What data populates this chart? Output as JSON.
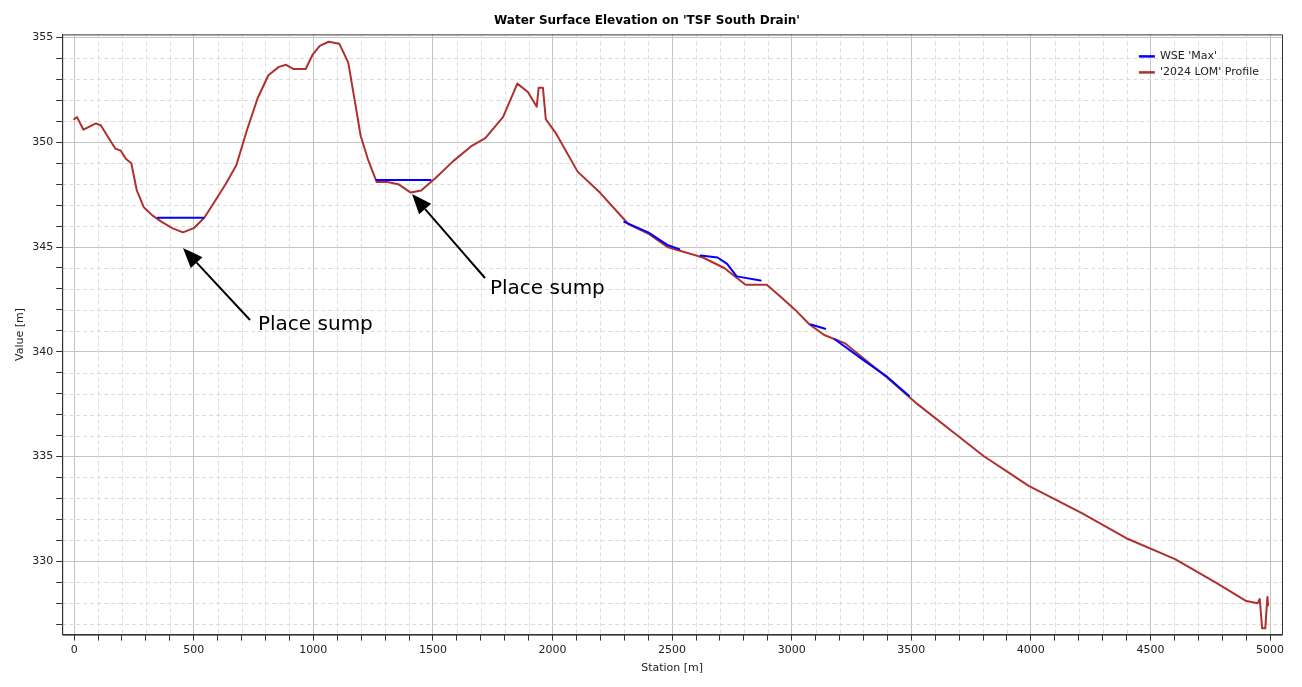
{
  "chart_data": {
    "type": "line",
    "title": "Water Surface Elevation on 'TSF South Drain'",
    "xlabel": "Station [m]",
    "ylabel": "Value [m]",
    "xlim": [
      -50,
      5050
    ],
    "ylim": [
      326.5,
      355.15
    ],
    "xticks": [
      0,
      {
        "value": 100,
        "label": null
      },
      {
        "value": 200,
        "label": null
      },
      {
        "value": 300,
        "label": null
      },
      {
        "value": 400,
        "label": null
      },
      500,
      {
        "value": 600,
        "label": null
      },
      {
        "value": 700,
        "label": null
      },
      {
        "value": 800,
        "label": null
      },
      {
        "value": 900,
        "label": null
      },
      1000,
      {
        "value": 1100,
        "label": null
      },
      {
        "value": 1200,
        "label": null
      },
      {
        "value": 1300,
        "label": null
      },
      {
        "value": 1400,
        "label": null
      },
      1500,
      {
        "value": 1600,
        "label": null
      },
      {
        "value": 1700,
        "label": null
      },
      {
        "value": 1800,
        "label": null
      },
      {
        "value": 1900,
        "label": null
      },
      2000,
      {
        "value": 2100,
        "label": null
      },
      {
        "value": 2200,
        "label": null
      },
      {
        "value": 2300,
        "label": null
      },
      {
        "value": 2400,
        "label": null
      },
      2500,
      {
        "value": 2600,
        "label": null
      },
      {
        "value": 2700,
        "label": null
      },
      {
        "value": 2800,
        "label": null
      },
      {
        "value": 2900,
        "label": null
      },
      3000,
      {
        "value": 3100,
        "label": null
      },
      {
        "value": 3200,
        "label": null
      },
      {
        "value": 3300,
        "label": null
      },
      {
        "value": 3400,
        "label": null
      },
      3500,
      {
        "value": 3600,
        "label": null
      },
      {
        "value": 3700,
        "label": null
      },
      {
        "value": 3800,
        "label": null
      },
      {
        "value": 3900,
        "label": null
      },
      4000,
      {
        "value": 4100,
        "label": null
      },
      {
        "value": 4200,
        "label": null
      },
      {
        "value": 4300,
        "label": null
      },
      {
        "value": 4400,
        "label": null
      },
      4500,
      {
        "value": 4600,
        "label": null
      },
      {
        "value": 4700,
        "label": null
      },
      {
        "value": 4800,
        "label": null
      },
      {
        "value": 4900,
        "label": null
      },
      5000
    ],
    "yticks": [
      {
        "value": 327,
        "label": null
      },
      {
        "value": 328,
        "label": null
      },
      {
        "value": 329,
        "label": null
      },
      330,
      {
        "value": 331,
        "label": null
      },
      {
        "value": 332,
        "label": null
      },
      {
        "value": 333,
        "label": null
      },
      {
        "value": 334,
        "label": null
      },
      335,
      {
        "value": 336,
        "label": null
      },
      {
        "value": 337,
        "label": null
      },
      {
        "value": 338,
        "label": null
      },
      {
        "value": 339,
        "label": null
      },
      340,
      {
        "value": 341,
        "label": null
      },
      {
        "value": 342,
        "label": null
      },
      {
        "value": 343,
        "label": null
      },
      {
        "value": 344,
        "label": null
      },
      345,
      {
        "value": 346,
        "label": null
      },
      {
        "value": 347,
        "label": null
      },
      {
        "value": 348,
        "label": null
      },
      {
        "value": 349,
        "label": null
      },
      350,
      {
        "value": 351,
        "label": null
      },
      {
        "value": 352,
        "label": null
      },
      {
        "value": 353,
        "label": null
      },
      {
        "value": 354,
        "label": null
      },
      355
    ],
    "grid": true,
    "legend": "top right",
    "marker": "none",
    "line_style": "solid",
    "series": [
      {
        "name": "WSE 'Max'",
        "color": "#0000ff",
        "x": [
          350,
          540,
          900,
          1265,
          1490,
          1900,
          2300,
          2400,
          2480,
          2530,
          2575,
          2620,
          2690,
          2730,
          2770,
          2870,
          2980,
          3080,
          3140,
          3160,
          3180,
          3300,
          3400,
          3490
        ],
        "values": [
          346.4,
          346.4,
          null,
          348.2,
          348.2,
          null,
          346.2,
          345.7,
          345.1,
          344.9,
          null,
          344.6,
          344.5,
          344.2,
          343.6,
          343.4,
          null,
          341.3,
          341.1,
          null,
          340.6,
          339.6,
          338.8,
          337.9
        ]
      },
      {
        "name": "'2024 LOM' Profile",
        "color": "#b03030",
        "x": [
          0,
          12,
          39,
          91,
          112,
          150,
          172,
          195,
          217,
          239,
          262,
          291,
          328,
          366,
          410,
          455,
          500,
          544,
          589,
          633,
          678,
          723,
          767,
          812,
          856,
          886,
          916,
          968,
          998,
          1027,
          1064,
          1109,
          1146,
          1176,
          1198,
          1228,
          1265,
          1310,
          1355,
          1407,
          1451,
          1511,
          1585,
          1659,
          1719,
          1793,
          1853,
          1897,
          1934,
          1942,
          1960,
          1972,
          2016,
          2105,
          2198,
          2317,
          2406,
          2480,
          2540,
          2629,
          2718,
          2807,
          2896,
          2956,
          3015,
          3075,
          3136,
          3224,
          3396,
          3526,
          3693,
          3805,
          3991,
          4213,
          4399,
          4603,
          4770,
          4901,
          4948,
          4957,
          4967,
          4980,
          4989,
          4992
        ],
        "values": [
          351.1,
          351.2,
          350.6,
          350.9,
          350.8,
          350.1,
          349.7,
          349.6,
          349.2,
          349.0,
          347.7,
          346.9,
          346.5,
          346.2,
          345.9,
          345.7,
          345.9,
          346.4,
          347.2,
          348.0,
          348.9,
          350.6,
          352.1,
          353.2,
          353.6,
          353.7,
          353.5,
          353.5,
          354.2,
          354.6,
          354.8,
          354.7,
          353.8,
          351.8,
          350.3,
          349.2,
          348.1,
          348.1,
          348.0,
          347.6,
          347.7,
          348.3,
          349.1,
          349.8,
          350.2,
          351.2,
          352.8,
          352.4,
          351.7,
          352.6,
          352.6,
          351.1,
          350.4,
          348.6,
          347.6,
          346.1,
          345.6,
          345.0,
          344.8,
          344.5,
          344.0,
          343.2,
          343.2,
          342.6,
          342.0,
          341.3,
          340.8,
          340.4,
          338.8,
          337.5,
          336.0,
          335.0,
          333.6,
          332.3,
          331.1,
          330.1,
          329.0,
          328.1,
          328.0,
          328.2,
          326.8,
          326.8,
          328.3,
          327.9
        ]
      }
    ],
    "annotations": [
      "Place sump",
      "Place sump"
    ]
  }
}
